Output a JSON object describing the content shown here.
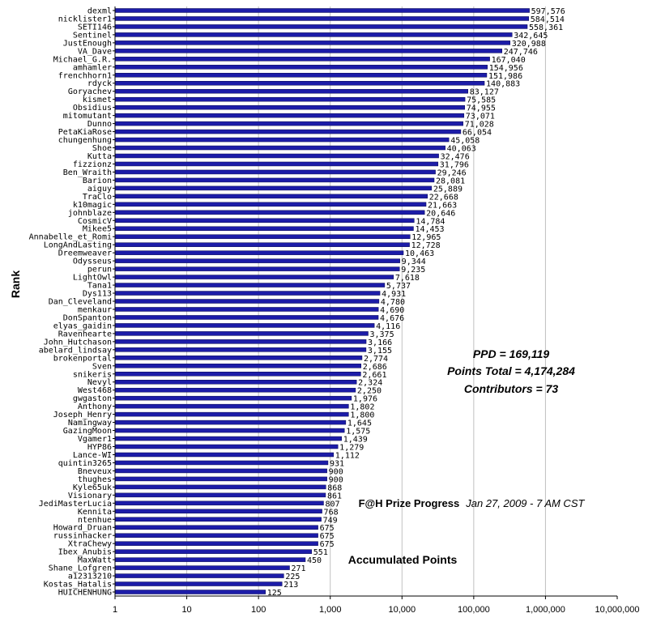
{
  "chart_data": {
    "type": "bar",
    "orientation": "horizontal",
    "scale": "log",
    "xlabel": "Accumulated Points",
    "ylabel": "Rank",
    "xlim": [
      1,
      10000000
    ],
    "xticks": [
      "1",
      "10",
      "100",
      "1,000",
      "10,000",
      "100,000",
      "1,000,000",
      "10,000,000"
    ],
    "grid": "vertical",
    "bar_color": "#1c1ca8",
    "annotations": {
      "ppd": "PPD = 169,119",
      "points_total": "Points Total = 4,174,284",
      "contributors": "Contributors = 73",
      "progress_title": "F@H Prize Progress",
      "progress_date": "Jan 27, 2009 - 7 AM CST"
    },
    "categories": [
      "dexml",
      "nicklister1",
      "SETI146",
      "Sentinel",
      "JustEnough",
      "VA_Dave",
      "Michael_G.R.",
      "amhamler",
      "frenchhorn1",
      "rdyck",
      "Goryachev",
      "kismet",
      "Obsidius",
      "mitomutant",
      "Dunno",
      "PetaKiaRose",
      "chungenhung",
      "Shoe",
      "Kutta",
      "fizzionz",
      "Ben_Wraith",
      "Barion",
      "aiguy",
      "TraClo",
      "k10magic",
      "johnblaze",
      "CosmicV",
      "Mikee5",
      "Annabelle_et_Romi",
      "LongAndLasting",
      "Dreemweaver",
      "Odysseus",
      "perun",
      "LightOwl",
      "Tana1",
      "Dys113",
      "Dan_Cleveland",
      "menkaur",
      "DonSpanton",
      "elyas_gaidin",
      "Ravenhearte",
      "John_Hutchason",
      "abelard_lindsay",
      "brokenportal",
      "Sven",
      "snikeris",
      "Nevyl",
      "West468",
      "gwgaston",
      "Anthony",
      "Joseph_Henry",
      "Namingway",
      "GazingMoon",
      "Vgamer1",
      "HYP86",
      "Lance-WI",
      "quintin3265",
      "Bneveux",
      "thughes",
      "Kyle65uk",
      "Visionary",
      "JediMasterLucia",
      "Kennita",
      "ntenhue",
      "Howard_Druan",
      "russinhacker",
      "XtraChewy",
      "Ibex_Anubis",
      "MaxWatt",
      "Shane_Lofgren",
      "a12313210",
      "Kostas_Hatalis",
      "HUICHENHUNG"
    ],
    "values": [
      597576,
      584514,
      558361,
      342645,
      320988,
      247746,
      167040,
      154956,
      151986,
      140883,
      83127,
      75585,
      74955,
      73071,
      71028,
      66054,
      45058,
      40063,
      32476,
      31796,
      29246,
      28081,
      25889,
      22668,
      21663,
      20646,
      14784,
      14453,
      12965,
      12728,
      10463,
      9344,
      9235,
      7618,
      5737,
      4931,
      4780,
      4690,
      4676,
      4116,
      3375,
      3166,
      3155,
      2774,
      2686,
      2661,
      2324,
      2250,
      1976,
      1802,
      1800,
      1645,
      1575,
      1439,
      1279,
      1112,
      931,
      900,
      900,
      868,
      861,
      807,
      768,
      749,
      675,
      675,
      675,
      551,
      450,
      271,
      225,
      213,
      125
    ],
    "value_labels": [
      "597,576",
      "584,514",
      "558,361",
      "342,645",
      "320,988",
      "247,746",
      "167,040",
      "154,956",
      "151,986",
      "140,883",
      "83,127",
      "75,585",
      "74,955",
      "73,071",
      "71,028",
      "66,054",
      "45,058",
      "40,063",
      "32,476",
      "31,796",
      "29,246",
      "28,081",
      "25,889",
      "22,668",
      "21,663",
      "20,646",
      "14,784",
      "14,453",
      "12,965",
      "12,728",
      "10,463",
      "9,344",
      "9,235",
      "7,618",
      "5,737",
      "4,931",
      "4,780",
      "4,690",
      "4,676",
      "4,116",
      "3,375",
      "3,166",
      "3,155",
      "2,774",
      "2,686",
      "2,661",
      "2,324",
      "2,250",
      "1,976",
      "1,802",
      "1,800",
      "1,645",
      "1,575",
      "1,439",
      "1,279",
      "1,112",
      "931",
      "900",
      "900",
      "868",
      "861",
      "807",
      "768",
      "749",
      "675",
      "675",
      "675",
      "551",
      "450",
      "271",
      "225",
      "213",
      "125"
    ]
  }
}
